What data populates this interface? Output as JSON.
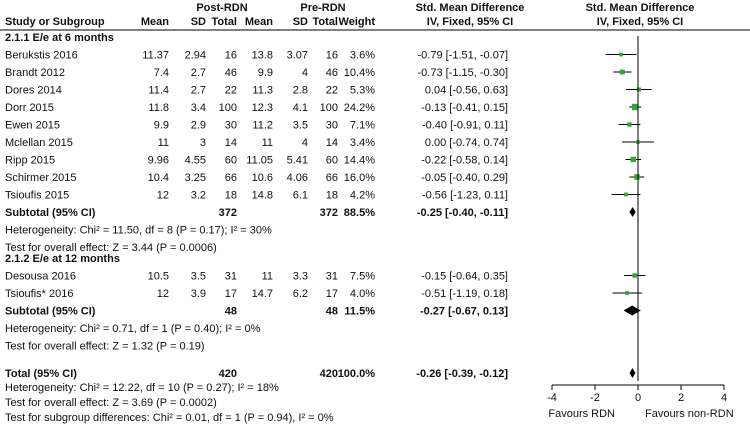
{
  "chart_data": {
    "type": "forest",
    "headers": {
      "group_post": "Post-RDN",
      "group_pre": "Pre-RDN",
      "study": "Study or Subgroup",
      "mean": "Mean",
      "sd": "SD",
      "total": "Total",
      "weight": "Weight",
      "effect_title": "Std. Mean Difference",
      "effect_method": "IV, Fixed, 95% CI"
    },
    "subgroups": [
      {
        "title": "2.1.1 E/e at 6 months",
        "studies": [
          {
            "name": "Berukstis 2016",
            "post_mean": "11.37",
            "post_sd": "2.94",
            "post_n": "16",
            "pre_mean": "13.8",
            "pre_sd": "3.07",
            "pre_n": "16",
            "weight": "3.6%",
            "ci_text": "-0.79 [-1.51, -0.07]",
            "est": -0.79,
            "lo": -1.51,
            "hi": -0.07,
            "w": 3.6
          },
          {
            "name": "Brandt 2012",
            "post_mean": "7.4",
            "post_sd": "2.7",
            "post_n": "46",
            "pre_mean": "9.9",
            "pre_sd": "4",
            "pre_n": "46",
            "weight": "10.4%",
            "ci_text": "-0.73 [-1.15, -0.30]",
            "est": -0.73,
            "lo": -1.15,
            "hi": -0.3,
            "w": 10.4
          },
          {
            "name": "Dores 2014",
            "post_mean": "11.4",
            "post_sd": "2.7",
            "post_n": "22",
            "pre_mean": "11.3",
            "pre_sd": "2.8",
            "pre_n": "22",
            "weight": "5.3%",
            "ci_text": "0.04 [-0.56, 0.63]",
            "est": 0.04,
            "lo": -0.56,
            "hi": 0.63,
            "w": 5.3
          },
          {
            "name": "Dorr 2015",
            "post_mean": "11.8",
            "post_sd": "3.4",
            "post_n": "100",
            "pre_mean": "12.3",
            "pre_sd": "4.1",
            "pre_n": "100",
            "weight": "24.2%",
            "ci_text": "-0.13 [-0.41, 0.15]",
            "est": -0.13,
            "lo": -0.41,
            "hi": 0.15,
            "w": 24.2
          },
          {
            "name": "Ewen 2015",
            "post_mean": "9.9",
            "post_sd": "2.9",
            "post_n": "30",
            "pre_mean": "11.2",
            "pre_sd": "3.5",
            "pre_n": "30",
            "weight": "7.1%",
            "ci_text": "-0.40 [-0.91, 0.11]",
            "est": -0.4,
            "lo": -0.91,
            "hi": 0.11,
            "w": 7.1
          },
          {
            "name": "Mclellan 2015",
            "post_mean": "11",
            "post_sd": "3",
            "post_n": "14",
            "pre_mean": "11",
            "pre_sd": "4",
            "pre_n": "14",
            "weight": "3.4%",
            "ci_text": "0.00 [-0.74, 0.74]",
            "est": 0.0,
            "lo": -0.74,
            "hi": 0.74,
            "w": 3.4
          },
          {
            "name": "Ripp 2015",
            "post_mean": "9.96",
            "post_sd": "4.55",
            "post_n": "60",
            "pre_mean": "11.05",
            "pre_sd": "5.41",
            "pre_n": "60",
            "weight": "14.4%",
            "ci_text": "-0.22 [-0.58, 0.14]",
            "est": -0.22,
            "lo": -0.58,
            "hi": 0.14,
            "w": 14.4
          },
          {
            "name": "Schirmer 2015",
            "post_mean": "10.4",
            "post_sd": "3.25",
            "post_n": "66",
            "pre_mean": "10.6",
            "pre_sd": "4.06",
            "pre_n": "66",
            "weight": "16.0%",
            "ci_text": "-0.05 [-0.40, 0.29]",
            "est": -0.05,
            "lo": -0.4,
            "hi": 0.29,
            "w": 16.0
          },
          {
            "name": "Tsioufis 2015",
            "post_mean": "12",
            "post_sd": "3.2",
            "post_n": "18",
            "pre_mean": "14.8",
            "pre_sd": "6.1",
            "pre_n": "18",
            "weight": "4.2%",
            "ci_text": "-0.56 [-1.23, 0.11]",
            "est": -0.56,
            "lo": -1.23,
            "hi": 0.11,
            "w": 4.2
          }
        ],
        "subtotal": {
          "label": "Subtotal (95% CI)",
          "post_n": "372",
          "pre_n": "372",
          "weight": "88.5%",
          "ci_text": "-0.25 [-0.40, -0.11]",
          "est": -0.25,
          "lo": -0.4,
          "hi": -0.11
        },
        "heterogeneity": "Heterogeneity: Chi² = 11.50, df = 8 (P = 0.17); I² = 30%",
        "overall_effect": "Test for overall effect: Z = 3.44 (P = 0.0006)"
      },
      {
        "title": "2.1.2 E/e at 12 months",
        "studies": [
          {
            "name": "Desousa 2016",
            "post_mean": "10.5",
            "post_sd": "3.5",
            "post_n": "31",
            "pre_mean": "11",
            "pre_sd": "3.3",
            "pre_n": "31",
            "weight": "7.5%",
            "ci_text": "-0.15 [-0.64, 0.35]",
            "est": -0.15,
            "lo": -0.64,
            "hi": 0.35,
            "w": 7.5
          },
          {
            "name": "Tsioufis* 2016",
            "post_mean": "12",
            "post_sd": "3.9",
            "post_n": "17",
            "pre_mean": "14.7",
            "pre_sd": "6.2",
            "pre_n": "17",
            "weight": "4.0%",
            "ci_text": "-0.51 [-1.19, 0.18]",
            "est": -0.51,
            "lo": -1.19,
            "hi": 0.18,
            "w": 4.0
          }
        ],
        "subtotal": {
          "label": "Subtotal (95% CI)",
          "post_n": "48",
          "pre_n": "48",
          "weight": "11.5%",
          "ci_text": "-0.27 [-0.67, 0.13]",
          "est": -0.27,
          "lo": -0.67,
          "hi": 0.13
        },
        "heterogeneity": "Heterogeneity: Chi² = 0.71, df = 1 (P = 0.40); I² = 0%",
        "overall_effect": "Test for overall effect: Z = 1.32 (P = 0.19)"
      }
    ],
    "total": {
      "label": "Total (95% CI)",
      "post_n": "420",
      "pre_n": "420",
      "weight": "100.0%",
      "ci_text": "-0.26 [-0.39, -0.12]",
      "est": -0.26,
      "lo": -0.39,
      "hi": -0.12
    },
    "total_heterogeneity": "Heterogeneity: Chi² = 12.22, df = 10 (P = 0.27); I² = 18%",
    "total_overall_effect": "Test for overall effect: Z = 3.69 (P = 0.0002)",
    "subgroup_differences": "Test for subgroup differences: Chi² = 0.01, df = 1 (P = 0.94), I² = 0%",
    "axis": {
      "xlim": [
        -4,
        4
      ],
      "ticks": [
        -4,
        -2,
        0,
        2,
        4
      ],
      "tick_labels": [
        "-4",
        "-2",
        "0",
        "2",
        "4"
      ]
    },
    "favours_left": "Favours RDN",
    "favours_right": "Favours non-RDN",
    "colors": {
      "marker": "#2eaa2e",
      "diamond": "#000000",
      "line": "#000000"
    }
  }
}
